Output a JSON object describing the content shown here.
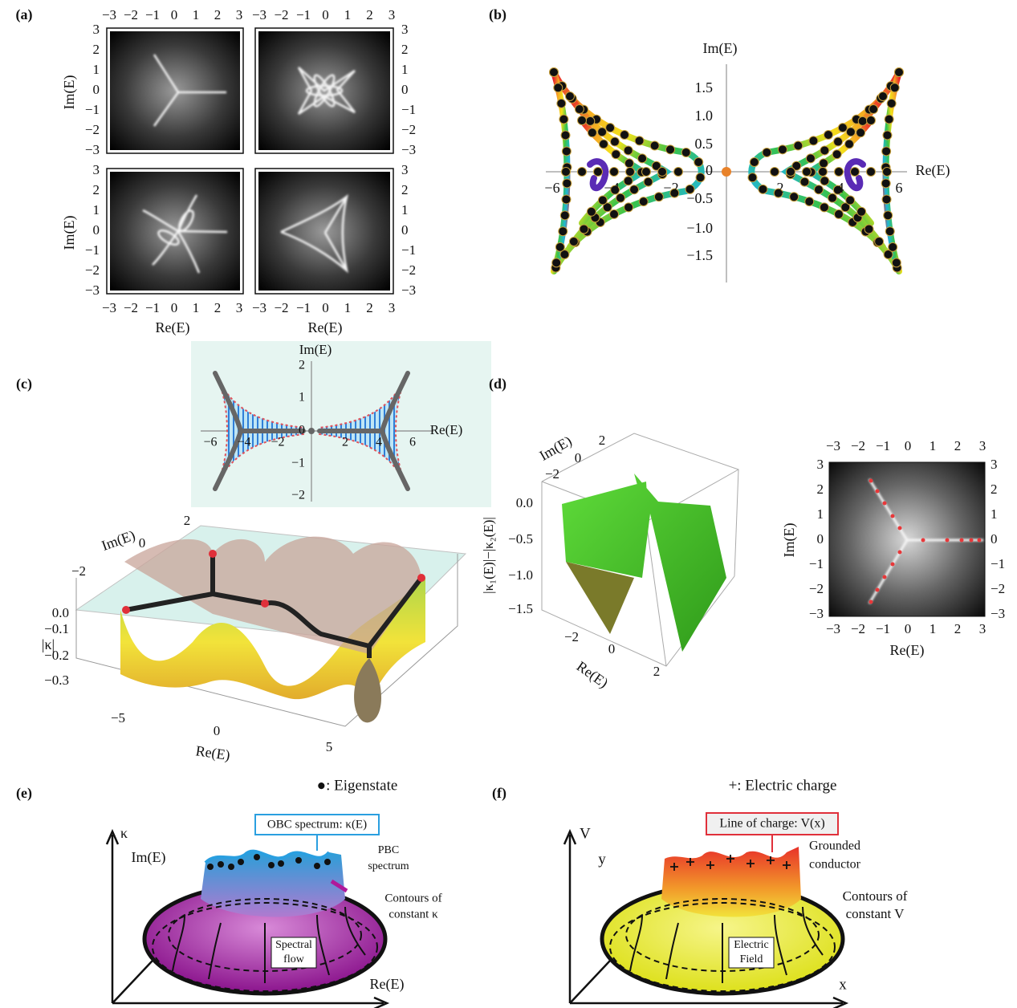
{
  "panel_labels": [
    "(a)",
    "(b)",
    "(c)",
    "(d)",
    "(e)",
    "(f)"
  ],
  "a": {
    "ticks": [
      "−3",
      "−2",
      "−1",
      "0",
      "1",
      "2",
      "3"
    ],
    "x_label": "Re(E)",
    "y_label": "Im(E)"
  },
  "b": {
    "x_label": "Re(E)",
    "y_label": "Im(E)",
    "x_ticks": [
      "−6",
      "−4",
      "−2",
      "2",
      "4",
      "6"
    ],
    "y_ticks": [
      "1.5",
      "1.0",
      "0.5",
      "0",
      "−0.5",
      "−1.0",
      "−1.5"
    ]
  },
  "c": {
    "inset": {
      "x_label": "Re(E)",
      "y_label": "Im(E)",
      "x_ticks": [
        "−6",
        "−4",
        "−2",
        "2",
        "4",
        "6"
      ],
      "y_ticks": [
        "2",
        "1",
        "0",
        "−1",
        "−2"
      ]
    },
    "surface": {
      "im_label": "Im(E)",
      "im_ticks": [
        "2",
        "0",
        "−2"
      ],
      "kappa_label": "|κ|",
      "kappa_ticks": [
        "0.0",
        "−0.1",
        "−0.2",
        "−0.3"
      ],
      "re_label": "Re(E)",
      "re_ticks": [
        "−5",
        "0",
        "5"
      ]
    }
  },
  "d": {
    "surface": {
      "im_label": "Im(E)",
      "im_ticks": [
        "2",
        "0",
        "−2"
      ],
      "z_label": "|κ₁(E)|−|κ₂(E)|",
      "z_ticks": [
        "0.0",
        "−0.5",
        "−1.0",
        "−1.5"
      ],
      "re_label": "Re(E)",
      "re_ticks": [
        "−2",
        "0",
        "2"
      ]
    },
    "map": {
      "ticks": [
        "−3",
        "−2",
        "−1",
        "0",
        "1",
        "2",
        "3"
      ],
      "x_label": "Re(E)",
      "y_label": "Im(E)"
    }
  },
  "e": {
    "legend": "●: Eigenstate",
    "kappa_axis": "κ",
    "im_axis": "Im(E)",
    "re_axis": "Re(E)",
    "obc_box": "OBC spectrum: κ(E)",
    "pbc_note": [
      "PBC",
      "spectrum"
    ],
    "contour_note": [
      "Contours of",
      "constant κ"
    ],
    "flow_box": [
      "Spectral",
      "flow"
    ]
  },
  "f": {
    "legend": "+: Electric charge",
    "v_axis": "V",
    "y_axis": "y",
    "x_axis": "x",
    "line_box": "Line of charge: V(x)",
    "conductor_note": [
      "Grounded",
      "conductor"
    ],
    "contour_note": [
      "Contours of",
      "constant V"
    ],
    "field_box": [
      "Electric",
      "Field"
    ]
  }
}
